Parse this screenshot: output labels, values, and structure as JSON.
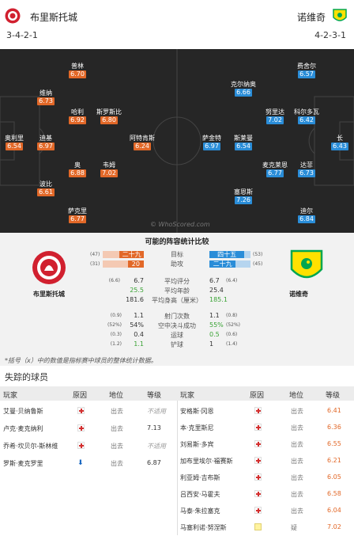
{
  "home": {
    "name": "布里斯托城",
    "formation": "3-4-2-1"
  },
  "away": {
    "name": "诺维奇",
    "formation": "4-2-3-1"
  },
  "pitch": {
    "watermark": "© WhoScored.com",
    "home_players": [
      {
        "name": "普林",
        "rating": "6.70"
      },
      {
        "name": "维纳",
        "rating": "6.73"
      },
      {
        "name": "哈利",
        "rating": "6.92"
      },
      {
        "name": "斯罗斯比",
        "rating": "6.80"
      },
      {
        "name": "奥利里",
        "rating": "6.54"
      },
      {
        "name": "迪基",
        "rating": "6.97"
      },
      {
        "name": "阿特肯斯",
        "rating": "6.24"
      },
      {
        "name": "奥",
        "rating": "6.88"
      },
      {
        "name": "韦姆",
        "rating": "7.02"
      },
      {
        "name": "波比",
        "rating": "6.61"
      },
      {
        "name": "萨克里",
        "rating": "6.77"
      }
    ],
    "away_players": [
      {
        "name": "费舍尔",
        "rating": "6.57"
      },
      {
        "name": "克尔纳奥",
        "rating": "6.66"
      },
      {
        "name": "努里达",
        "rating": "7.02"
      },
      {
        "name": "科尔多瓦",
        "rating": "6.42"
      },
      {
        "name": "长",
        "rating": "6.43"
      },
      {
        "name": "萨金特",
        "rating": "6.97"
      },
      {
        "name": "斯莱曼",
        "rating": "6.54"
      },
      {
        "name": "麦克莱恩",
        "rating": "6.77"
      },
      {
        "name": "达菲",
        "rating": "6.73"
      },
      {
        "name": "塞恩斯",
        "rating": "7.26"
      },
      {
        "name": "迪尔",
        "rating": "6.84"
      }
    ]
  },
  "comparison": {
    "title": "可能的阵容统计比较",
    "home_name": "布里斯托城",
    "away_name": "诺维奇",
    "bars": [
      {
        "label": "目标",
        "home": "二十九",
        "home_pct": 0.59,
        "home_paren": "(47)",
        "away": "四十五",
        "away_pct": 0.85,
        "away_paren": "(53)"
      },
      {
        "label": "助攻",
        "home": "20",
        "home_pct": 0.39,
        "home_paren": "(31)",
        "away": "二十九",
        "away_pct": 0.64,
        "away_paren": "(45)"
      }
    ],
    "rows1": [
      {
        "label": "平均评分",
        "home_p": "(6.6)",
        "home": "6.7",
        "away": "6.7",
        "away_p": "(6.4)"
      },
      {
        "label": "平均年龄",
        "home_p": "",
        "home": "25.5",
        "away": "25.4",
        "away_p": ""
      },
      {
        "label": "平均身高（厘米）",
        "home_p": "",
        "home": "181.6",
        "away": "185.1",
        "away_p": ""
      }
    ],
    "rows2": [
      {
        "label": "射门次数",
        "home_p": "(0.9)",
        "home": "1.1",
        "away": "1.1",
        "away_p": "(0.8)"
      },
      {
        "label": "空中决斗成功",
        "home_p": "(52%)",
        "home": "54%",
        "away": "55%",
        "away_p": "(52%)"
      },
      {
        "label": "运球",
        "home_p": "(0.3)",
        "home": "0.4",
        "away": "0.5",
        "away_p": "(0.6)"
      },
      {
        "label": "铲球",
        "home_p": "(1.2)",
        "home": "1.1",
        "away": "1",
        "away_p": "(1.4)"
      }
    ]
  },
  "note": "*括号（x）中的数值是指标赛中球员的整体统计数据。",
  "missing": {
    "title": "失踪的球员",
    "headers": {
      "player": "玩家",
      "reason": "原因",
      "status": "地位",
      "level": "等级"
    },
    "home": [
      {
        "name": "艾曼·贝纳鲁斯",
        "reason": "injury",
        "status": "出去",
        "level": "不适用",
        "na": true
      },
      {
        "name": "卢克·麦克纳利",
        "reason": "injury",
        "status": "出去",
        "level": "7.13",
        "na": false
      },
      {
        "name": "乔希·坎贝尔-斯林维",
        "reason": "injury",
        "status": "出去",
        "level": "不适用",
        "na": true
      },
      {
        "name": "罗斯·麦克罗里",
        "reason": "transfer",
        "status": "出去",
        "level": "6.87",
        "na": false
      }
    ],
    "away": [
      {
        "name": "安格斯·冈恩",
        "reason": "injury",
        "status": "出去",
        "level": "6.41"
      },
      {
        "name": "本·克里斯尼",
        "reason": "injury",
        "status": "出去",
        "level": "6.36"
      },
      {
        "name": "刘易斯·多宾",
        "reason": "injury",
        "status": "出去",
        "level": "6.55"
      },
      {
        "name": "加布里埃尔·福赛斯",
        "reason": "injury",
        "status": "出去",
        "level": "6.21"
      },
      {
        "name": "利亚姆·吉布斯",
        "reason": "injury",
        "status": "出去",
        "level": "6.05"
      },
      {
        "name": "吕西安·马霍夫",
        "reason": "injury",
        "status": "出去",
        "level": "6.58"
      },
      {
        "name": "马泰·朱拉塞克",
        "reason": "injury",
        "status": "出去",
        "level": "6.04"
      },
      {
        "name": "马塞利诺·努涅斯",
        "reason": "doubt",
        "status": "疑",
        "level": "7.02"
      }
    ]
  },
  "colors": {
    "home": "#e26828",
    "away": "#2a8dd8",
    "pitch": "#262626"
  }
}
